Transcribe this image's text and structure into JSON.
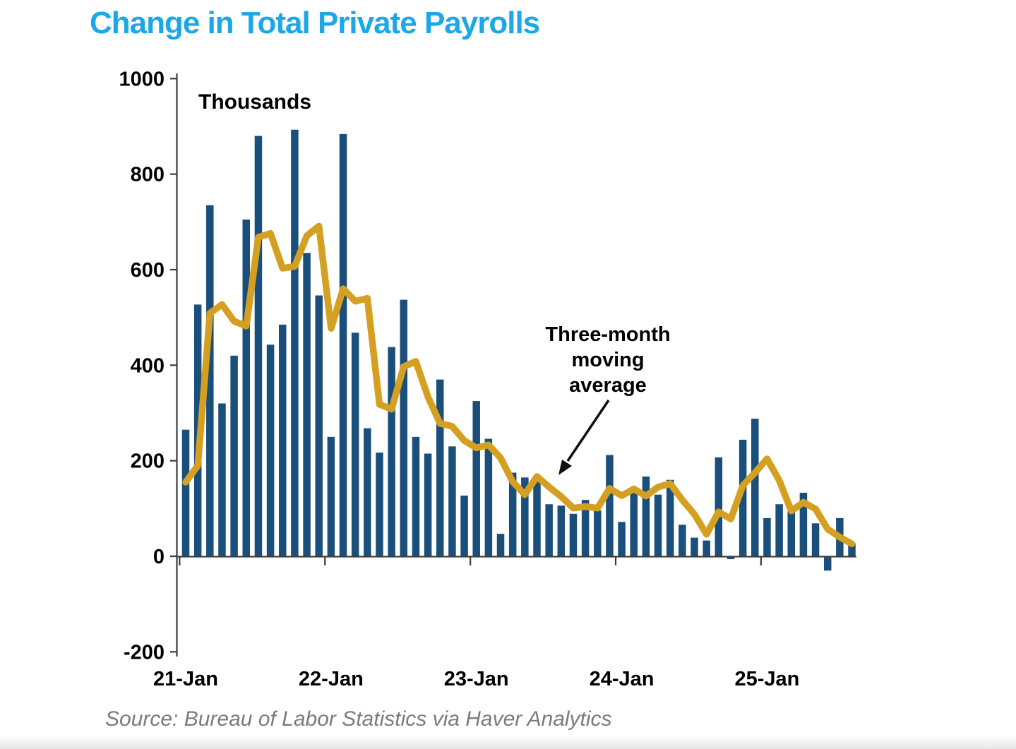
{
  "page": {
    "title": "Change in Total Private Payrolls",
    "source": "Source: Bureau of Labor Statistics via Haver Analytics"
  },
  "units_label": "Thousands",
  "annotation": {
    "lines": [
      "Three-month",
      "moving",
      "average"
    ]
  },
  "colors": {
    "title": "#1BA7E8",
    "bar": "#1A4F7C",
    "ma_line": "#D5A021",
    "axis": "#3d3d3d",
    "label_text": "#000000",
    "source_text": "#7b7b7b",
    "arrow": "#111111"
  },
  "chart_data": {
    "type": "bar",
    "title": "Change in Total Private Payrolls",
    "units": "Thousands",
    "xlabel": "",
    "ylabel": "Thousands",
    "ylim": [
      -200,
      1000
    ],
    "y_ticks": [
      1000,
      800,
      600,
      400,
      200,
      0,
      -200
    ],
    "x_tick_labels": [
      "21-Jan",
      "22-Jan",
      "23-Jan",
      "24-Jan",
      "25-Jan"
    ],
    "grid": false,
    "legend_position": "none",
    "months": [
      "2021-01",
      "2021-02",
      "2021-03",
      "2021-04",
      "2021-05",
      "2021-06",
      "2021-07",
      "2021-08",
      "2021-09",
      "2021-10",
      "2021-11",
      "2021-12",
      "2022-01",
      "2022-02",
      "2022-03",
      "2022-04",
      "2022-05",
      "2022-06",
      "2022-07",
      "2022-08",
      "2022-09",
      "2022-10",
      "2022-11",
      "2022-12",
      "2023-01",
      "2023-02",
      "2023-03",
      "2023-04",
      "2023-05",
      "2023-06",
      "2023-07",
      "2023-08",
      "2023-09",
      "2023-10",
      "2023-11",
      "2023-12",
      "2024-01",
      "2024-02",
      "2024-03",
      "2024-04",
      "2024-05",
      "2024-06",
      "2024-07",
      "2024-08",
      "2024-09",
      "2024-10",
      "2024-11",
      "2024-12",
      "2025-01",
      "2025-02",
      "2025-03",
      "2025-04",
      "2025-05",
      "2025-06",
      "2025-07",
      "2025-08"
    ],
    "series": [
      {
        "name": "Monthly change in total private payrolls",
        "type": "bar",
        "values": [
          265,
          527,
          735,
          320,
          420,
          705,
          880,
          443,
          485,
          893,
          635,
          546,
          250,
          884,
          468,
          268,
          217,
          438,
          537,
          250,
          215,
          370,
          230,
          127,
          325,
          246,
          47,
          175,
          165,
          160,
          109,
          106,
          89,
          118,
          96,
          212,
          72,
          138,
          167,
          129,
          160,
          66,
          39,
          33,
          207,
          -6,
          244,
          288,
          80,
          109,
          96,
          133,
          69,
          -30,
          80,
          27
        ]
      },
      {
        "name": "Three-month moving average",
        "type": "line",
        "values": [
          155,
          190,
          509,
          527,
          492,
          482,
          668,
          676,
          603,
          607,
          671,
          691,
          477,
          560,
          534,
          540,
          318,
          308,
          397,
          408,
          334,
          278,
          272,
          242,
          227,
          233,
          206,
          156,
          129,
          167,
          145,
          125,
          101,
          104,
          101,
          142,
          127,
          141,
          126,
          145,
          152,
          118,
          88,
          46,
          93,
          78,
          148,
          175,
          204,
          159,
          95,
          113,
          99,
          57,
          40,
          26
        ]
      }
    ]
  }
}
